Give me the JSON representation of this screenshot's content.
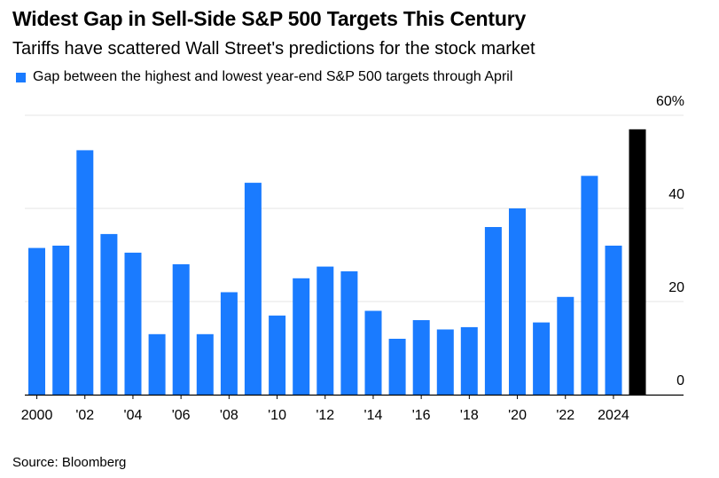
{
  "title": "Widest Gap in Sell-Side S&P 500 Targets This Century",
  "subtitle": "Tariffs have scattered Wall Street's predictions for the stock market",
  "legend_label": "Gap between the highest and lowest year-end S&P 500 targets through April",
  "source": "Source: Bloomberg",
  "colors": {
    "series": "#1a7bff",
    "highlight": "#000000",
    "grid": "#e6e6e6",
    "axis": "#000000"
  },
  "chart_data": {
    "type": "bar",
    "categories": [
      "2000",
      "2001",
      "2002",
      "2003",
      "2004",
      "2005",
      "2006",
      "2007",
      "2008",
      "2009",
      "2010",
      "2011",
      "2012",
      "2013",
      "2014",
      "2015",
      "2016",
      "2017",
      "2018",
      "2019",
      "2020",
      "2021",
      "2022",
      "2023",
      "2024",
      "2025"
    ],
    "values": [
      31.5,
      32,
      52.5,
      34.5,
      30.5,
      13,
      28,
      13,
      22,
      45.5,
      17,
      25,
      27.5,
      26.5,
      18,
      12,
      16,
      14,
      14.5,
      36,
      40,
      15.5,
      21,
      47,
      32,
      57
    ],
    "highlight_index": 25,
    "series": [
      {
        "name": "Gap between the highest and lowest year-end S&P 500 targets through April"
      }
    ],
    "x_tick_labels": [
      "2000",
      "'02",
      "'04",
      "'06",
      "'08",
      "'10",
      "'12",
      "'14",
      "'16",
      "'18",
      "'20",
      "'22",
      "2024"
    ],
    "x_tick_categories": [
      "2000",
      "2002",
      "2004",
      "2006",
      "2008",
      "2010",
      "2012",
      "2014",
      "2016",
      "2018",
      "2020",
      "2022",
      "2024"
    ],
    "y_ticks": [
      0,
      20,
      40,
      60
    ],
    "y_tick_labels": [
      "0",
      "20",
      "40",
      "60%"
    ],
    "ylim": [
      0,
      60
    ],
    "xlabel": "",
    "ylabel": "",
    "grid": true,
    "legend_position": "top-left",
    "y_axis_side": "right"
  }
}
